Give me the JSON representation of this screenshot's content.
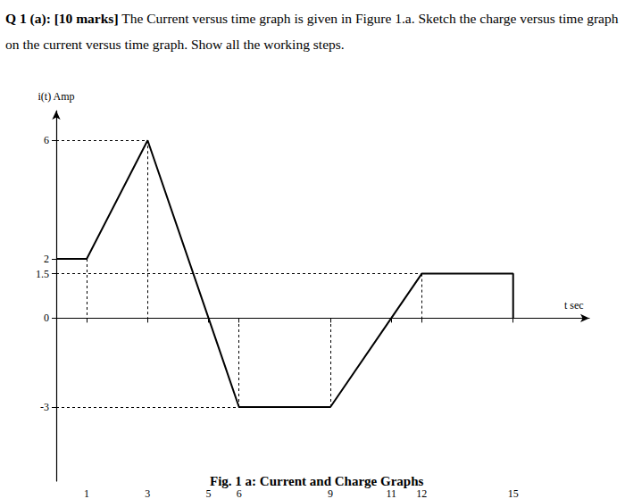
{
  "chart_data": {
    "type": "line",
    "title": "Q 1 (a): [10 marks]",
    "subtitle": "The Current versus time graph is given in Figure 1.a. Sketch the charge versus time graph on the current versus time graph. Show all the working steps.",
    "annotations": [
      "Fig. 1 a: Current and Charge Graphs"
    ],
    "x_label": "t sec",
    "y_label": "i(t) Amp",
    "x": [
      0,
      1,
      3,
      5,
      6,
      9,
      11,
      12,
      15,
      15
    ],
    "values": [
      2,
      2,
      6,
      0,
      -3,
      -3,
      0,
      1.5,
      1.5,
      0
    ],
    "color": "#000000",
    "line_style": "solid",
    "xlim": [
      0,
      17.5
    ],
    "ylim": [
      -5.5,
      7
    ],
    "xticks": [
      1,
      3,
      5,
      6,
      9,
      11,
      12,
      15
    ],
    "yticks": [
      -3,
      0,
      1.5,
      2,
      6
    ],
    "grid": false
  }
}
